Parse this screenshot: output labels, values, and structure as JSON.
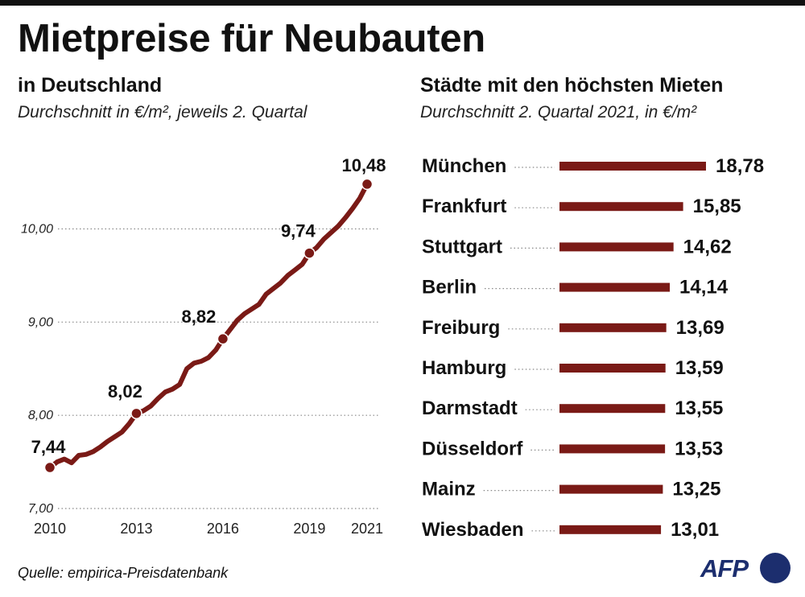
{
  "title": "Mietpreise für Neubauten",
  "left": {
    "title": "in Deutschland",
    "subtitle": "Durchschnitt in €/m², jeweils 2. Quartal"
  },
  "right": {
    "title": "Städte mit den höchsten Mieten",
    "subtitle": "Durchschnitt 2. Quartal 2021, in €/m²"
  },
  "source": "Quelle: empirica-Preisdatenbank",
  "logo": "AFP",
  "colors": {
    "series": "#7a1a16",
    "text": "#111111",
    "grid": "#888888",
    "logo": "#1c2e6e"
  },
  "chart_data": [
    {
      "type": "line",
      "x_ticks": [
        "2010",
        "2013",
        "2016",
        "2019",
        "2021"
      ],
      "y_ticks": [
        "7,00",
        "8,00",
        "9,00",
        "10,00"
      ],
      "ylim": [
        7,
        10.6
      ],
      "xlim": [
        2010,
        2021.5
      ],
      "grid": true,
      "series": [
        {
          "x": [
            2010.0,
            2010.25,
            2010.5,
            2010.75,
            2011.0,
            2011.25,
            2011.5,
            2011.75,
            2012.0,
            2012.25,
            2012.5,
            2012.75,
            2013.0,
            2013.25,
            2013.5,
            2013.75,
            2014.0,
            2014.25,
            2014.5,
            2014.75,
            2015.0,
            2015.25,
            2015.5,
            2015.75,
            2016.0,
            2016.25,
            2016.5,
            2016.75,
            2017.0,
            2017.25,
            2017.5,
            2017.75,
            2018.0,
            2018.25,
            2018.5,
            2018.75,
            2019.0,
            2019.25,
            2019.5,
            2019.75,
            2020.0,
            2020.25,
            2020.5,
            2020.75,
            2021.0
          ],
          "values": [
            7.44,
            7.5,
            7.53,
            7.49,
            7.57,
            7.58,
            7.61,
            7.66,
            7.72,
            7.77,
            7.82,
            7.91,
            8.02,
            8.05,
            8.1,
            8.18,
            8.25,
            8.28,
            8.33,
            8.5,
            8.56,
            8.58,
            8.62,
            8.7,
            8.82,
            8.92,
            9.02,
            9.09,
            9.14,
            9.19,
            9.3,
            9.36,
            9.42,
            9.5,
            9.56,
            9.62,
            9.74,
            9.8,
            9.89,
            9.96,
            10.03,
            10.12,
            10.22,
            10.33,
            10.48
          ]
        }
      ],
      "labels": [
        {
          "x": 2010.0,
          "y": 7.44,
          "text": "7,44"
        },
        {
          "x": 2013.0,
          "y": 8.02,
          "text": "8,02"
        },
        {
          "x": 2016.0,
          "y": 8.82,
          "text": "8,82"
        },
        {
          "x": 2019.0,
          "y": 9.74,
          "text": "9,74"
        },
        {
          "x": 2021.0,
          "y": 10.48,
          "text": "10,48"
        }
      ]
    },
    {
      "type": "bar",
      "orientation": "horizontal",
      "categories": [
        "München",
        "Frankfurt",
        "Stuttgart",
        "Berlin",
        "Freiburg",
        "Hamburg",
        "Darmstadt",
        "Düsseldorf",
        "Mainz",
        "Wiesbaden"
      ],
      "values": [
        18.78,
        15.85,
        14.62,
        14.14,
        13.69,
        13.59,
        13.55,
        13.53,
        13.25,
        13.01
      ],
      "value_labels": [
        "18,78",
        "15,85",
        "14,62",
        "14,14",
        "13,69",
        "13,59",
        "13,55",
        "13,53",
        "13,25",
        "13,01"
      ]
    }
  ]
}
